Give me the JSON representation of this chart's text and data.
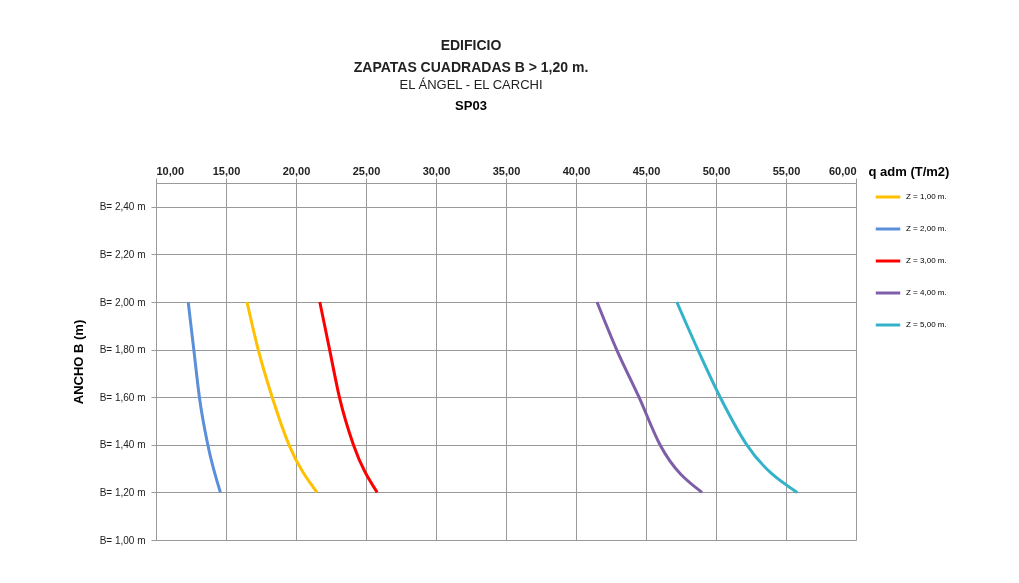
{
  "chart_data": {
    "type": "line",
    "title": "EDIFICIO\nZAPATAS CUADRADAS  B > 1,20 m.",
    "subtitle": "EL ÁNGEL - EL CARCHI",
    "annotations": [
      "SP03"
    ],
    "xlabel": "q adm (T/m2)",
    "ylabel": "ANCHO B (m)",
    "xlim": [
      10,
      60
    ],
    "ylim": [
      1.0,
      2.5
    ],
    "xticks": [
      {
        "value": 10,
        "label": "10,00"
      },
      {
        "value": 15,
        "label": "15,00"
      },
      {
        "value": 20,
        "label": "20,00"
      },
      {
        "value": 25,
        "label": "25,00"
      },
      {
        "value": 30,
        "label": "30,00"
      },
      {
        "value": 35,
        "label": "35,00"
      },
      {
        "value": 40,
        "label": "40,00"
      },
      {
        "value": 45,
        "label": "45,00"
      },
      {
        "value": 50,
        "label": "50,00"
      },
      {
        "value": 55,
        "label": "55,00"
      },
      {
        "value": 60,
        "label": "60,00"
      }
    ],
    "yticks": [
      {
        "value": 1.0,
        "label": "B= 1,00 m"
      },
      {
        "value": 1.2,
        "label": "B= 1,20 m"
      },
      {
        "value": 1.4,
        "label": "B= 1,40 m"
      },
      {
        "value": 1.6,
        "label": "B= 1,60 m"
      },
      {
        "value": 1.8,
        "label": "B= 1,80 m"
      },
      {
        "value": 2.0,
        "label": "B= 2,00 m"
      },
      {
        "value": 2.2,
        "label": "B= 2,20 m"
      },
      {
        "value": 2.4,
        "label": "B= 2,40 m"
      }
    ],
    "grid": true,
    "legend": "right",
    "series": [
      {
        "name": "Z = 1,00 m.",
        "color": "#ffc000",
        "x": [
          16.5,
          17.3,
          18.3,
          19.5,
          21.5
        ],
        "values": [
          2.0,
          1.8,
          1.6,
          1.4,
          1.2
        ]
      },
      {
        "name": "Z = 2,00 m.",
        "color": "#5b8fd9",
        "x": [
          12.3,
          12.7,
          13.1,
          13.7,
          14.6
        ],
        "values": [
          2.0,
          1.8,
          1.6,
          1.4,
          1.2
        ]
      },
      {
        "name": "Z = 3,00 m.",
        "color": "#ff0000",
        "x": [
          21.7,
          22.4,
          23.1,
          24.1,
          25.8
        ],
        "values": [
          2.0,
          1.8,
          1.6,
          1.4,
          1.2
        ]
      },
      {
        "name": "Z = 4,00 m.",
        "color": "#7e5ea8",
        "x": [
          41.5,
          42.9,
          44.5,
          46.0,
          49.0
        ],
        "values": [
          2.0,
          1.8,
          1.6,
          1.4,
          1.2
        ]
      },
      {
        "name": "Z = 5,00 m.",
        "color": "#34b2c9",
        "x": [
          47.2,
          48.7,
          50.3,
          52.2,
          55.8
        ],
        "values": [
          2.0,
          1.8,
          1.6,
          1.4,
          1.2
        ]
      }
    ]
  }
}
